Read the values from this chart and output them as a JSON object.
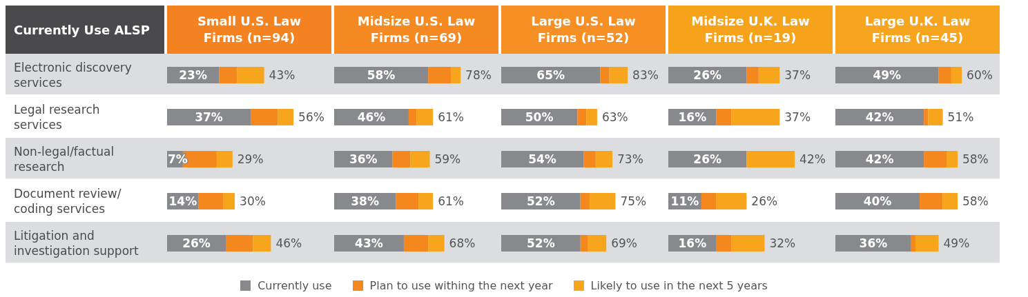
{
  "chart_data": [
    {
      "type": "bar",
      "orientation": "horizontal",
      "stacked": true,
      "title": "Small U.S. Law Firms (n=94)",
      "ylabel": "Currently Use ALSP",
      "categories": [
        "Electronic discovery services",
        "Legal research services",
        "Non-legal/factual research",
        "Document review/ coding services",
        "Litigation and investigation support"
      ],
      "tick_labels": "y",
      "grid": false,
      "legend": "bottom",
      "series": [
        {
          "name": "Currently use",
          "color": "#88898c",
          "values": [
            23,
            37,
            7,
            14,
            26
          ],
          "value_labels": [
            "23%",
            "37%",
            "7%",
            "14%",
            "26%"
          ]
        },
        {
          "name": "Plan to use withing the next year",
          "color": "#f5871f",
          "values": [
            8,
            12,
            15,
            11,
            12
          ]
        },
        {
          "name": "Likely to use in the next 5 years",
          "color": "#f7a51c",
          "values": [
            12,
            7,
            7,
            5,
            8
          ]
        }
      ],
      "totals": [
        "43%",
        "56%",
        "29%",
        "30%",
        "46%"
      ]
    },
    {
      "type": "bar",
      "orientation": "horizontal",
      "stacked": true,
      "title": "Midsize U.S. Law Firms (n=69)",
      "tick_labels": false,
      "grid": false,
      "series": [
        {
          "color": "#88898c",
          "values": [
            58,
            46,
            36,
            38,
            43
          ],
          "value_labels": [
            "58%",
            "46%",
            "36%",
            "38%",
            "43%"
          ]
        },
        {
          "color": "#f5871f",
          "values": [
            14,
            5,
            11,
            14,
            15
          ]
        },
        {
          "color": "#f7a51c",
          "values": [
            6,
            10,
            12,
            9,
            10
          ]
        }
      ],
      "totals": [
        "78%",
        "61%",
        "59%",
        "61%",
        "68%"
      ]
    },
    {
      "type": "bar",
      "orientation": "horizontal",
      "stacked": true,
      "title": "Large U.S. Law Firms (n=52)",
      "tick_labels": false,
      "grid": false,
      "series": [
        {
          "color": "#88898c",
          "values": [
            65,
            50,
            54,
            52,
            52
          ],
          "value_labels": [
            "65%",
            "50%",
            "54%",
            "52%",
            "52%"
          ]
        },
        {
          "color": "#f5871f",
          "values": [
            6,
            6,
            8,
            6,
            5
          ]
        },
        {
          "color": "#f7a51c",
          "values": [
            12,
            7,
            11,
            17,
            12
          ]
        }
      ],
      "totals": [
        "83%",
        "63%",
        "73%",
        "75%",
        "69%"
      ]
    },
    {
      "type": "bar",
      "orientation": "horizontal",
      "stacked": true,
      "title": "Midsize U.K. Law Firms (n=19)",
      "tick_labels": false,
      "grid": false,
      "series": [
        {
          "color": "#88898c",
          "values": [
            26,
            16,
            26,
            11,
            16
          ],
          "value_labels": [
            "26%",
            "16%",
            "26%",
            "11%",
            "16%"
          ]
        },
        {
          "color": "#f5871f",
          "values": [
            4,
            5,
            0,
            5,
            5
          ]
        },
        {
          "color": "#f7a51c",
          "values": [
            7,
            16,
            16,
            10,
            11
          ]
        }
      ],
      "totals": [
        "37%",
        "37%",
        "42%",
        "26%",
        "32%"
      ]
    },
    {
      "type": "bar",
      "orientation": "horizontal",
      "stacked": true,
      "title": "Large U.K. Law Firms (n=45)",
      "tick_labels": false,
      "grid": false,
      "series": [
        {
          "color": "#88898c",
          "values": [
            49,
            42,
            42,
            40,
            36
          ],
          "value_labels": [
            "49%",
            "42%",
            "42%",
            "40%",
            "36%"
          ]
        },
        {
          "color": "#f5871f",
          "values": [
            6,
            2,
            11,
            11,
            2
          ]
        },
        {
          "color": "#f7a51c",
          "values": [
            5,
            7,
            5,
            7,
            11
          ]
        }
      ],
      "totals": [
        "60%",
        "51%",
        "58%",
        "58%",
        "49%"
      ]
    }
  ]
}
